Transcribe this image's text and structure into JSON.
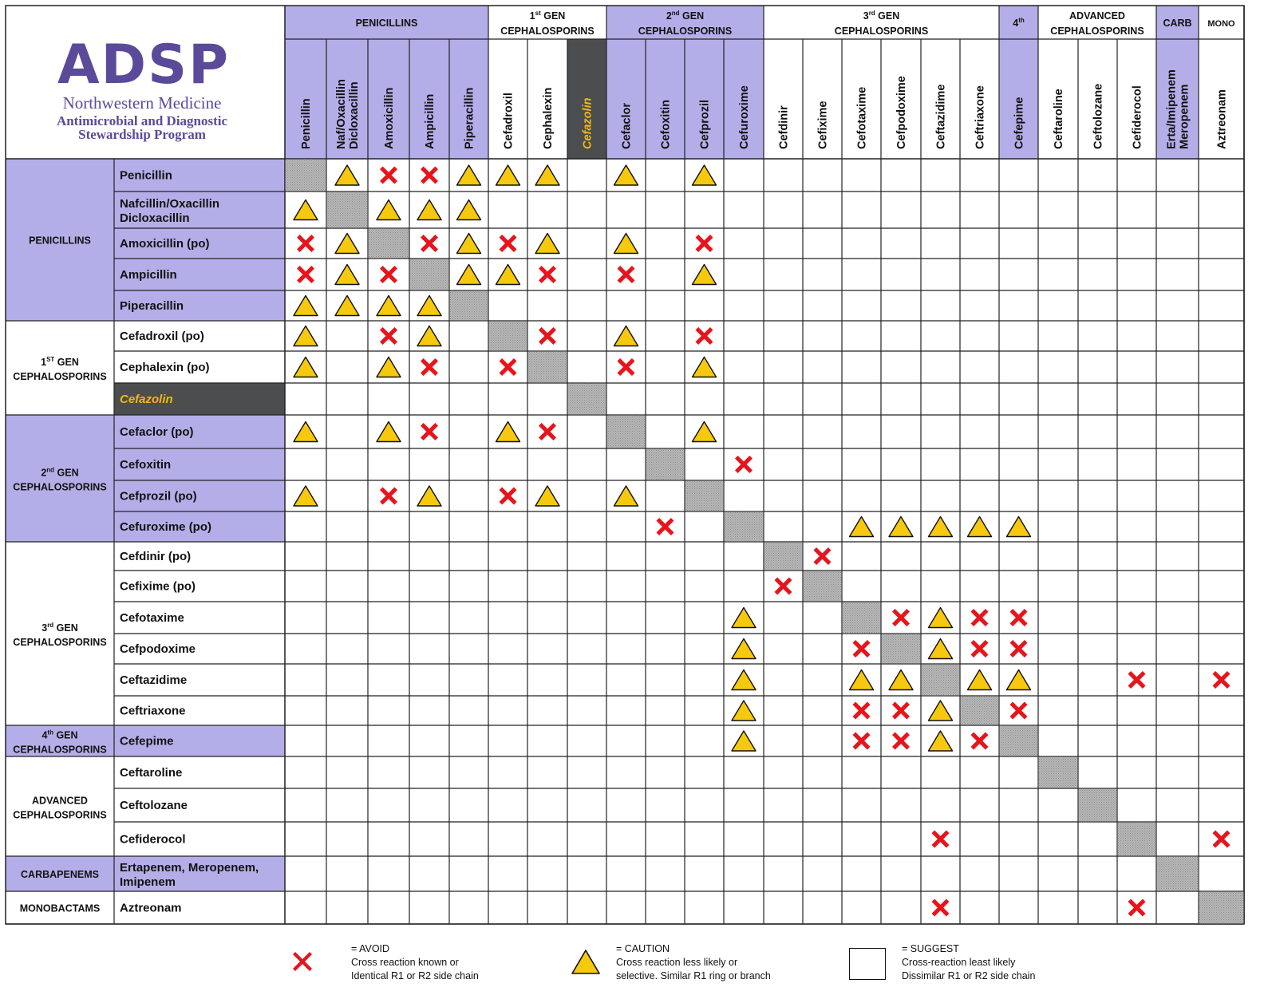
{
  "logo": {
    "mark": "ADSP",
    "org": "Northwestern Medicine",
    "line1": "Antimicrobial and Diagnostic",
    "line2": "Stewardship Program"
  },
  "colors": {
    "purple": "#b4aee8",
    "dark": "#4b4d4e",
    "cefazolin_text": "#f5b614",
    "diag": "#a9a9a9",
    "avoid": "#e8141b",
    "caution": "#f6c90e",
    "logo": "#5b4a9a"
  },
  "groups": [
    {
      "id": "pen",
      "top": "PENICILLINS",
      "top_sup": "",
      "top_rest": "",
      "bottom": "",
      "label": "PENICILLINS",
      "label_sup": "",
      "label_rest": "",
      "label2": "",
      "purple": true
    },
    {
      "id": "g1",
      "top": "1",
      "top_sup": "st",
      "top_rest": " GEN",
      "bottom": "CEPHALOSPORINS",
      "label": "1",
      "label_sup": "ST",
      "label_rest": " GEN",
      "label2": "CEPHALOSPORINS",
      "purple": false
    },
    {
      "id": "g2",
      "top": "2",
      "top_sup": "nd",
      "top_rest": " GEN",
      "bottom": "CEPHALOSPORINS",
      "label": "2",
      "label_sup": "nd",
      "label_rest": " GEN",
      "label2": "CEPHALOSPORINS",
      "purple": true
    },
    {
      "id": "g3",
      "top": "3",
      "top_sup": "rd",
      "top_rest": " GEN",
      "bottom": "CEPHALOSPORINS",
      "label": "3",
      "label_sup": "rd",
      "label_rest": " GEN",
      "label2": "CEPHALOSPORINS",
      "purple": false
    },
    {
      "id": "g4",
      "top": "4",
      "top_sup": "th",
      "top_rest": "",
      "bottom": "",
      "label": "4",
      "label_sup": "th",
      "label_rest": " GEN",
      "label2": "CEPHALOSPORINS",
      "purple": true
    },
    {
      "id": "adv",
      "top": "ADVANCED",
      "top_sup": "",
      "top_rest": "",
      "bottom": "CEPHALOSPORINS",
      "label": "ADVANCED",
      "label_sup": "",
      "label_rest": "",
      "label2": "CEPHALOSPORINS",
      "purple": false
    },
    {
      "id": "carb",
      "top": "CARB",
      "top_sup": "",
      "top_rest": "",
      "bottom": "",
      "label": "CARBAPENEMS",
      "label_sup": "",
      "label_rest": "",
      "label2": "",
      "purple": true
    },
    {
      "id": "mono",
      "top": "MONO",
      "top_sup": "",
      "top_rest": "",
      "bottom": "",
      "label": "MONOBACTAMS",
      "label_sup": "",
      "label_rest": "",
      "label2": "",
      "purple": false
    }
  ],
  "columns": [
    {
      "name": "Penicillin",
      "name2": "",
      "group": "pen"
    },
    {
      "name": "Naf/Oxacillin",
      "name2": "Dicloxacillin",
      "group": "pen"
    },
    {
      "name": "Amoxicillin",
      "name2": "",
      "group": "pen"
    },
    {
      "name": "Ampicillin",
      "name2": "",
      "group": "pen"
    },
    {
      "name": "Piperacillin",
      "name2": "",
      "group": "pen"
    },
    {
      "name": "Cefadroxil",
      "name2": "",
      "group": "g1"
    },
    {
      "name": "Cephalexin",
      "name2": "",
      "group": "g1"
    },
    {
      "name": "Cefazolin",
      "name2": "",
      "group": "g1",
      "special": true
    },
    {
      "name": "Cefaclor",
      "name2": "",
      "group": "g2"
    },
    {
      "name": "Cefoxitin",
      "name2": "",
      "group": "g2"
    },
    {
      "name": "Cefprozil",
      "name2": "",
      "group": "g2"
    },
    {
      "name": "Cefuroxime",
      "name2": "",
      "group": "g2"
    },
    {
      "name": "Cefdinir",
      "name2": "",
      "group": "g3"
    },
    {
      "name": "Cefixime",
      "name2": "",
      "group": "g3"
    },
    {
      "name": "Cefotaxime",
      "name2": "",
      "group": "g3"
    },
    {
      "name": "Cefpodoxime",
      "name2": "",
      "group": "g3"
    },
    {
      "name": "Ceftazidime",
      "name2": "",
      "group": "g3"
    },
    {
      "name": "Ceftriaxone",
      "name2": "",
      "group": "g3"
    },
    {
      "name": "Cefepime",
      "name2": "",
      "group": "g4"
    },
    {
      "name": "Ceftaroline",
      "name2": "",
      "group": "adv"
    },
    {
      "name": "Ceftolozane",
      "name2": "",
      "group": "adv"
    },
    {
      "name": "Cefiderocol",
      "name2": "",
      "group": "adv"
    },
    {
      "name": "Erta/Imipenem",
      "name2": "Meropenem",
      "group": "carb"
    },
    {
      "name": "Aztreonam",
      "name2": "",
      "group": "mono"
    }
  ],
  "rows": [
    {
      "name": "Penicillin",
      "name2": "",
      "group": "pen",
      "cells": "D C X X C C C . C . C . . . . . . . . . . . . ."
    },
    {
      "name": "Nafcillin/Oxacillin",
      "name2": "Dicloxacillin",
      "group": "pen",
      "cells": "C D C C C . . . . . . . . . . . . . . . . . . ."
    },
    {
      "name": "Amoxicillin (po)",
      "name2": "",
      "group": "pen",
      "cells": "X C D X C X C . C . X . . . . . . . . . . . . ."
    },
    {
      "name": "Ampicillin",
      "name2": "",
      "group": "pen",
      "cells": "X C X D C C X . X . C . . . . . . . . . . . . ."
    },
    {
      "name": "Piperacillin",
      "name2": "",
      "group": "pen",
      "cells": "C C C C D . . . . . . . . . . . . . . . . . . ."
    },
    {
      "name": "Cefadroxil (po)",
      "name2": "",
      "group": "g1",
      "cells": "C . X C . D X . C . X . . . . . . . . . . . . ."
    },
    {
      "name": "Cephalexin (po)",
      "name2": "",
      "group": "g1",
      "cells": "C . C X . X D . X . C . . . . . . . . . . . . ."
    },
    {
      "name": "Cefazolin",
      "name2": "",
      "group": "g1",
      "special": true,
      "cells": ". . . . . . . D . . . . . . . . . . . . . . . ."
    },
    {
      "name": "Cefaclor (po)",
      "name2": "",
      "group": "g2",
      "cells": "C . C X . C X . D . C . . . . . . . . . . . . ."
    },
    {
      "name": "Cefoxitin",
      "name2": "",
      "group": "g2",
      "cells": ". . . . . . . . . D . X . . . . . . . . . . . ."
    },
    {
      "name": "Cefprozil (po)",
      "name2": "",
      "group": "g2",
      "cells": "C . X C . X C . C . D . . . . . . . . . . . . ."
    },
    {
      "name": "Cefuroxime (po)",
      "name2": "",
      "group": "g2",
      "cells": ". . . . . . . . . X . D . . C C C C C . . . . ."
    },
    {
      "name": "Cefdinir (po)",
      "name2": "",
      "group": "g3",
      "cells": ". . . . . . . . . . . . D X . . . . . . . . . ."
    },
    {
      "name": "Cefixime (po)",
      "name2": "",
      "group": "g3",
      "cells": ". . . . . . . . . . . . X D . . . . . . . . . ."
    },
    {
      "name": "Cefotaxime",
      "name2": "",
      "group": "g3",
      "cells": ". . . . . . . . . . . C . . D X C X X . . . . ."
    },
    {
      "name": "Cefpodoxime",
      "name2": "",
      "group": "g3",
      "cells": ". . . . . . . . . . . C . . X D C X X . . . . ."
    },
    {
      "name": "Ceftazidime",
      "name2": "",
      "group": "g3",
      "cells": ". . . . . . . . . . . C . . C C D C C . . X . X"
    },
    {
      "name": "Ceftriaxone",
      "name2": "",
      "group": "g3",
      "cells": ". . . . . . . . . . . C . . X X C D X . . . . ."
    },
    {
      "name": "Cefepime",
      "name2": "",
      "group": "g4",
      "cells": ". . . . . . . . . . . C . . X X C X D . . . . ."
    },
    {
      "name": "Ceftaroline",
      "name2": "",
      "group": "adv",
      "cells": ". . . . . . . . . . . . . . . . . . . D . . . ."
    },
    {
      "name": "Ceftolozane",
      "name2": "",
      "group": "adv",
      "cells": ". . . . . . . . . . . . . . . . . . . . D . . ."
    },
    {
      "name": "Cefiderocol",
      "name2": "",
      "group": "adv",
      "cells": ". . . . . . . . . . . . . . . . X . . . . D . X"
    },
    {
      "name": "Ertapenem, Meropenem,",
      "name2": "Imipenem",
      "group": "carb",
      "cells": ". . . . . . . . . . . . . . . . . . . . . . D ."
    },
    {
      "name": "Aztreonam",
      "name2": "",
      "group": "mono",
      "cells": ". . . . . . . . . . . . . . . . X . . . . X . D"
    }
  ],
  "legend": {
    "avoid": {
      "title": "= AVOID",
      "line1": "Cross reaction known or",
      "line2": "Identical R1 or R2 side chain"
    },
    "caution": {
      "title": "= CAUTION",
      "line1": "Cross reaction less likely or",
      "line2": "selective. Similar R1 ring or branch"
    },
    "suggest": {
      "title": "= SUGGEST",
      "line1": "Cross-reaction least likely",
      "line2": "Dissimilar R1 or R2 side chain"
    }
  }
}
